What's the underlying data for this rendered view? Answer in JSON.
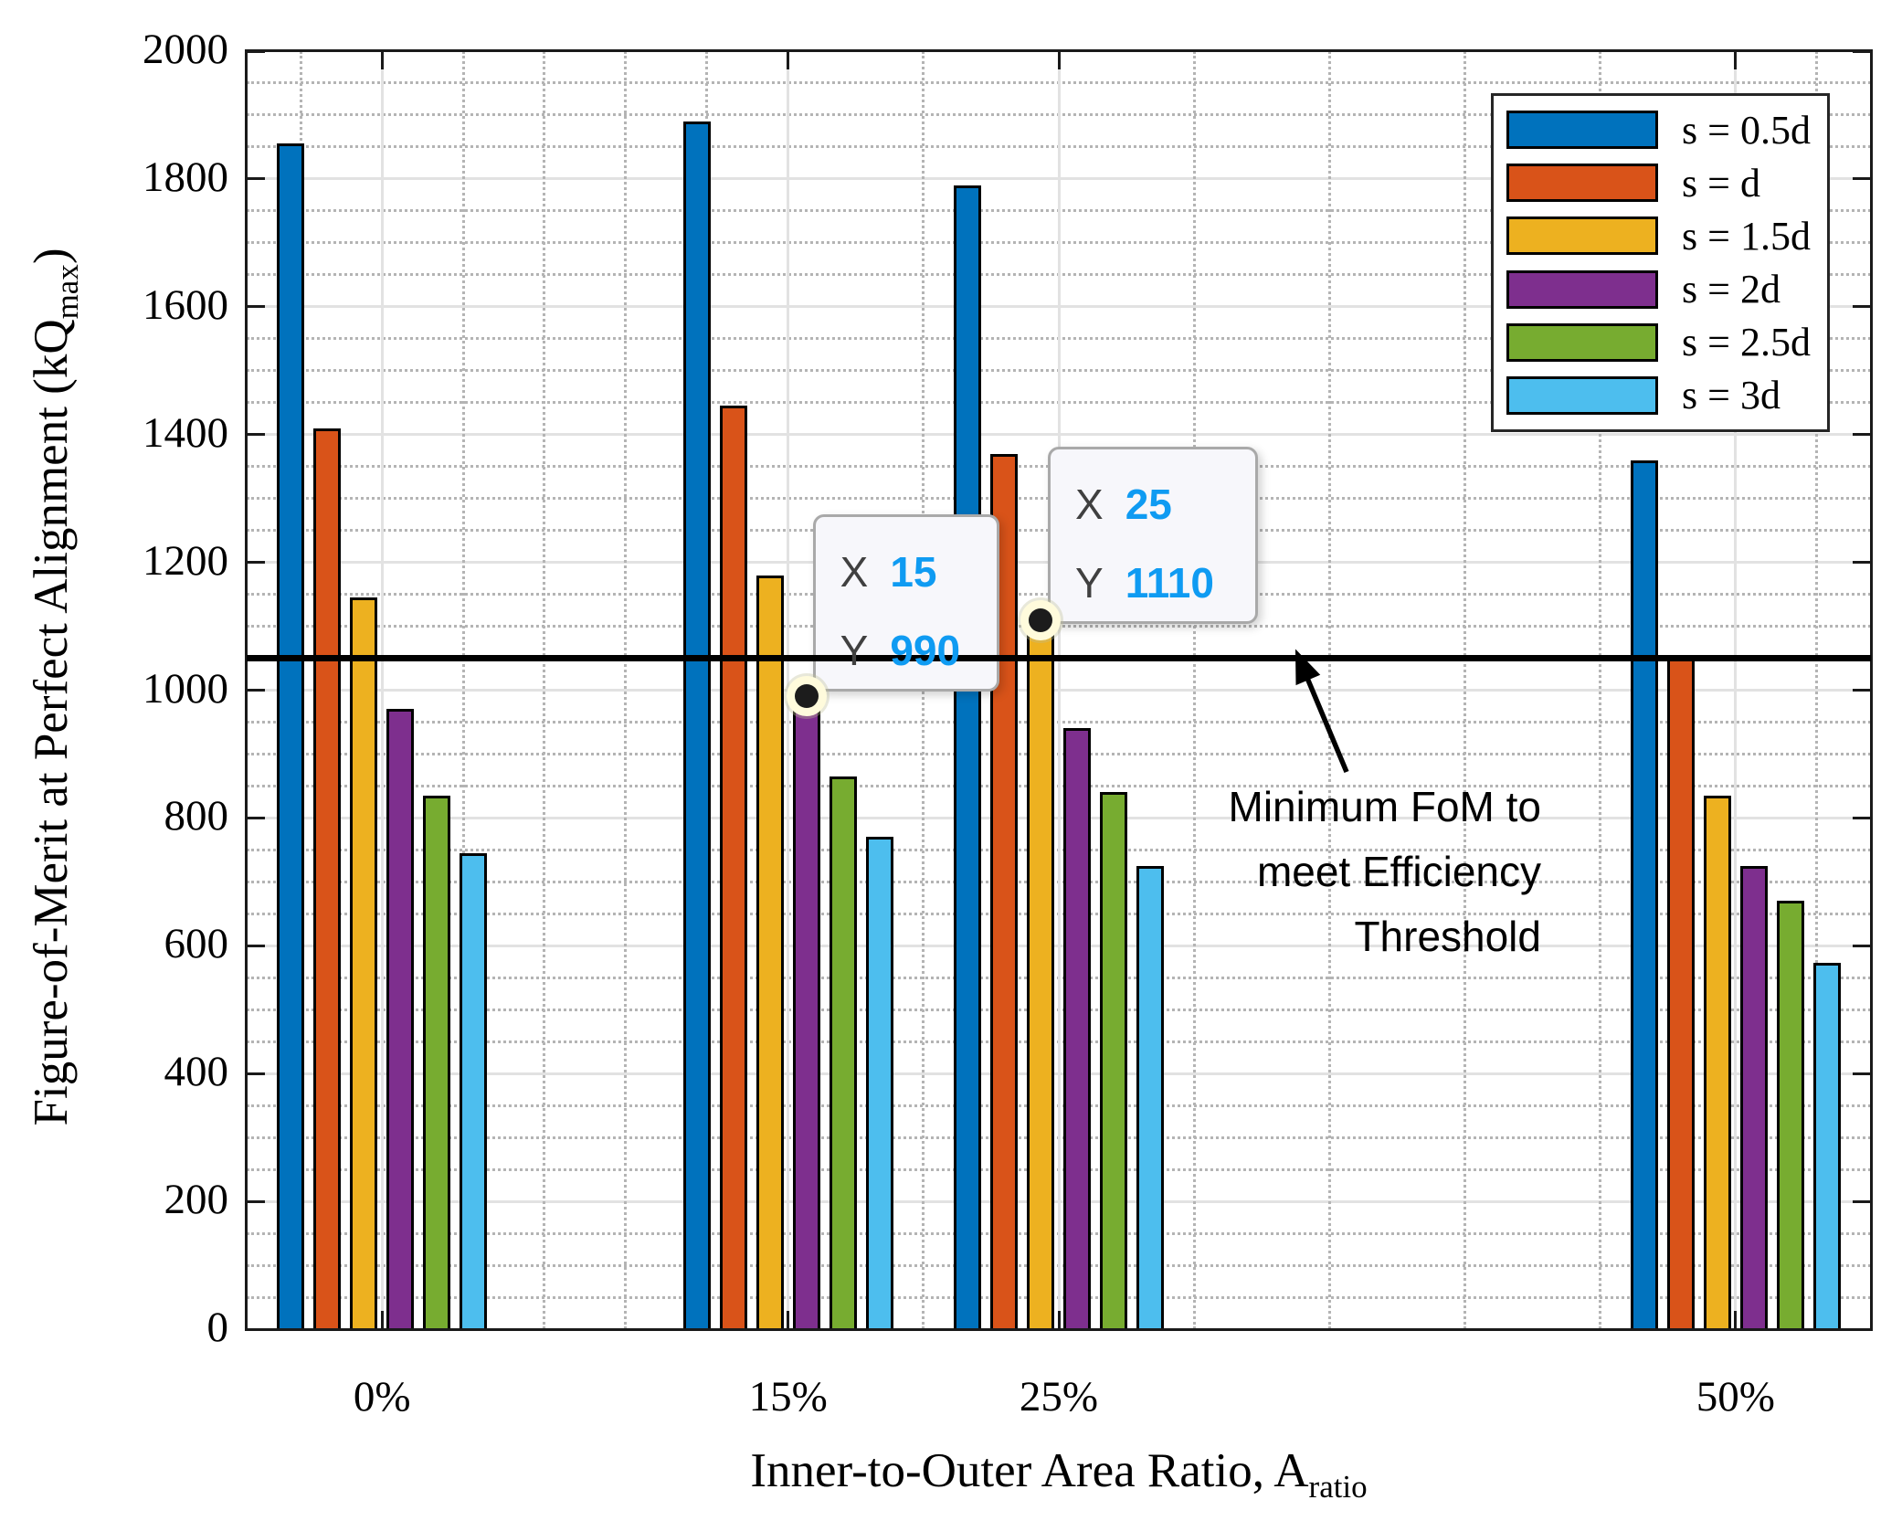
{
  "y_axis": {
    "label_main": "Figure-of-Merit at Perfect Alignment (kQ",
    "label_sub": "max",
    "label_suffix": ")",
    "tick_labels": [
      "0",
      "200",
      "400",
      "600",
      "800",
      "1000",
      "1200",
      "1400",
      "1600",
      "1800",
      "2000"
    ]
  },
  "x_axis": {
    "label_main": "Inner-to-Outer Area Ratio, A",
    "label_sub": "ratio",
    "tick_labels": [
      "0%",
      "15%",
      "25%",
      "50%"
    ]
  },
  "chart_data": {
    "type": "bar",
    "categories": [
      "0%",
      "15%",
      "25%",
      "50%"
    ],
    "x_positions": [
      0,
      15,
      25,
      50
    ],
    "xlim": [
      -5,
      55
    ],
    "ylim": [
      0,
      2000
    ],
    "y_major_step": 200,
    "y_minor_step": 50,
    "x_minor_positions": [
      -3,
      3,
      6,
      9,
      12,
      20,
      30,
      35,
      40,
      45,
      53
    ],
    "grid": "on",
    "legend_position": "northeast",
    "series": [
      {
        "name": "s = 0.5d",
        "color": "#0072BD",
        "values": [
          1855,
          1890,
          1790,
          1360
        ]
      },
      {
        "name": "s = d",
        "color": "#D95319",
        "values": [
          1410,
          1445,
          1370,
          1055
        ]
      },
      {
        "name": "s = 1.5d",
        "color": "#EDB120",
        "values": [
          1145,
          1180,
          1110,
          835
        ]
      },
      {
        "name": "s = 2d",
        "color": "#7E2F8E",
        "values": [
          970,
          990,
          940,
          725
        ]
      },
      {
        "name": "s = 2.5d",
        "color": "#77AC30",
        "values": [
          835,
          865,
          840,
          670
        ]
      },
      {
        "name": "s = 3d",
        "color": "#4DBEEE",
        "values": [
          745,
          770,
          725,
          573
        ]
      }
    ],
    "threshold_line": {
      "value": 1050,
      "color": "#000000"
    }
  },
  "annotation": {
    "lines": [
      "Minimum FoM to",
      "meet Efficiency",
      "Threshold"
    ]
  },
  "datatips": [
    {
      "x_key": "X",
      "x_value": "15",
      "y_key": "Y",
      "y_value": "990",
      "series_index": 3,
      "category_index": 1
    },
    {
      "x_key": "X",
      "x_value": "25",
      "y_key": "Y",
      "y_value": "1110",
      "series_index": 2,
      "category_index": 2
    }
  ],
  "colors": {
    "datatip_value": "#0F9BF2",
    "datatip_key": "#404040",
    "datatip_bg": "#F7F7FB",
    "datatip_border": "#A9A9A9",
    "marker_core": "#1c1c1c",
    "grid_major": "#E2E2E2",
    "grid_minor": "#B4B4B4",
    "axis": "#1a1a1a"
  }
}
